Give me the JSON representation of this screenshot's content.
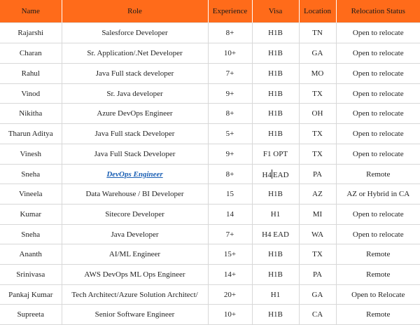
{
  "header": {
    "name": "Name",
    "role": "Role",
    "experience": "Experience",
    "visa": "Visa",
    "location": "Location",
    "relocation": "Relocation Status"
  },
  "rows": [
    {
      "name": "Rajarshi",
      "role": "Salesforce Developer",
      "experience": "8+",
      "visa": "H1B",
      "location": "TN",
      "relocation": "Open to relocate"
    },
    {
      "name": "Charan",
      "role": "Sr. Application/.Net Developer",
      "experience": "10+",
      "visa": "H1B",
      "location": "GA",
      "relocation": "Open to relocate"
    },
    {
      "name": "Rahul",
      "role": "Java Full stack developer",
      "experience": "7+",
      "visa": "H1B",
      "location": "MO",
      "relocation": "Open to relocate"
    },
    {
      "name": "Vinod",
      "role": "Sr. Java developer",
      "experience": "9+",
      "visa": "H1B",
      "location": "TX",
      "relocation": "Open to relocate"
    },
    {
      "name": "Nikitha",
      "role": "Azure DevOps Engineer",
      "experience": "8+",
      "visa": "H1B",
      "location": "OH",
      "relocation": "Open to relocate"
    },
    {
      "name": "Tharun Aditya",
      "role": "Java Full stack Developer",
      "experience": "5+",
      "visa": "H1B",
      "location": "TX",
      "relocation": "Open to relocate"
    },
    {
      "name": "Vinesh",
      "role": "Java Full Stack Developer",
      "experience": "9+",
      "visa": "F1 OPT",
      "location": "TX",
      "relocation": "Open to relocate"
    },
    {
      "name": "Sneha",
      "role": "DevOps Engineer",
      "experience": "8+",
      "visa_a": "H4",
      "visa_b": "EAD",
      "location": "PA",
      "relocation": "Remote"
    },
    {
      "name": "Vineela",
      "role": "Data Warehouse / BI Developer",
      "experience": "15",
      "visa": "H1B",
      "location": "AZ",
      "relocation": "AZ or Hybrid in CA"
    },
    {
      "name": "Kumar",
      "role": "Sitecore Developer",
      "experience": "14",
      "visa": "H1",
      "location": "MI",
      "relocation": "Open to relocate"
    },
    {
      "name": "Sneha",
      "role": "Java Developer",
      "experience": "7+",
      "visa": "H4 EAD",
      "location": "WA",
      "relocation": "Open to relocate"
    },
    {
      "name": "Ananth",
      "role": "AI/ML Engineer",
      "experience": "15+",
      "visa": "H1B",
      "location": "TX",
      "relocation": "Remote"
    },
    {
      "name": "Srinivasa",
      "role": "AWS DevOps ML Ops Engineer",
      "experience": "14+",
      "visa": "H1B",
      "location": "PA",
      "relocation": "Remote"
    },
    {
      "name": "Pankaj Kumar",
      "role": "Tech Architect/Azure Solution Architect/",
      "experience": "20+",
      "visa": "H1",
      "location": "GA",
      "relocation": "Open to Relocate"
    },
    {
      "name": "Supreeta",
      "role": "Senior Software Engineer",
      "experience": "10+",
      "visa": "H1B",
      "location": "CA",
      "relocation": "Remote"
    }
  ],
  "colors": {
    "header_bg": "#ff6b1a",
    "link": "#1a5fb4",
    "grid": "#d8d8d8"
  }
}
